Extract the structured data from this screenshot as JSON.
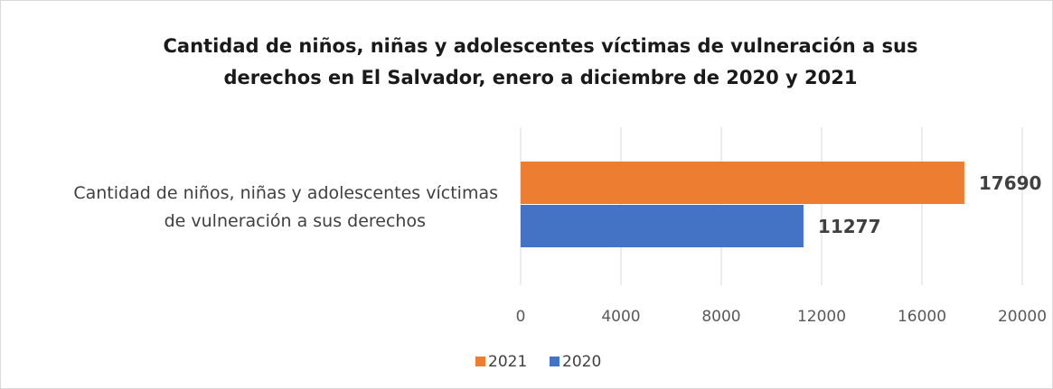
{
  "chart_data": {
    "type": "bar",
    "orientation": "horizontal",
    "title": "Cantidad de niños, niñas y adolescentes víctimas de vulneración a sus derechos en El Salvador, enero a diciembre de 2020 y 2021",
    "title_lines": [
      "Cantidad de niños, niñas y adolescentes víctimas de vulneración a sus",
      "derechos en El Salvador, enero a diciembre de 2020 y 2021"
    ],
    "categories": [
      "Cantidad de niños, niñas y adolescentes víctimas de vulneración a sus derechos"
    ],
    "category_lines": [
      "Cantidad de niños, niñas y adolescentes víctimas",
      "de vulneración a sus derechos"
    ],
    "series": [
      {
        "name": "2021",
        "values": [
          17690
        ],
        "color": "#ED7D31"
      },
      {
        "name": "2020",
        "values": [
          11277
        ],
        "color": "#4472C4"
      }
    ],
    "xlim": [
      0,
      20000
    ],
    "xticks": [
      "0",
      "4000",
      "8000",
      "12000",
      "16000",
      "20000"
    ],
    "grid": true,
    "legend_position": "bottom",
    "data_labels": true
  }
}
